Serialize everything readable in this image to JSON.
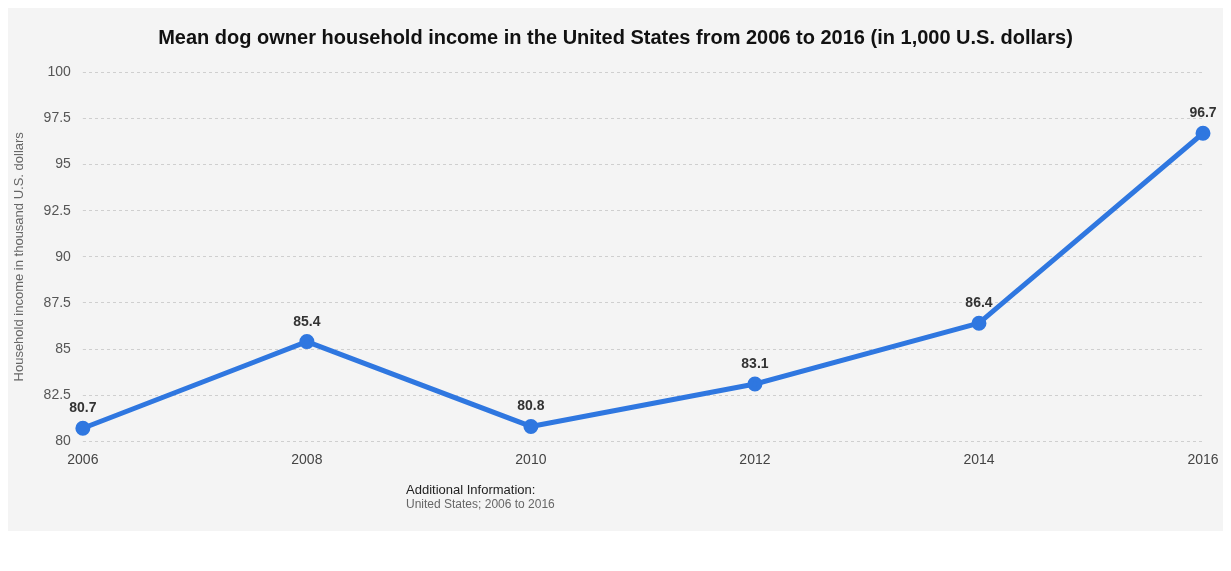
{
  "chart_data": {
    "type": "line",
    "title": "Mean dog owner household income in the United States from 2006 to 2016 (in 1,000 U.S. dollars)",
    "ylabel": "Household income in thousand U.S. dollars",
    "categories": [
      "2006",
      "2008",
      "2010",
      "2012",
      "2014",
      "2016"
    ],
    "series": [
      {
        "color": "#2f77e0",
        "values": [
          80.7,
          85.4,
          80.8,
          83.1,
          86.4,
          96.7
        ]
      }
    ],
    "ylim": [
      80,
      100
    ],
    "yticks": [
      80,
      82.5,
      85,
      87.5,
      90,
      92.5,
      95,
      97.5,
      100
    ],
    "grid": "y",
    "data_labels": true,
    "marker": "circle",
    "line_style": "solid",
    "legend": false,
    "annotations": [
      "Additional Information:",
      "United States; 2006 to 2016"
    ]
  }
}
